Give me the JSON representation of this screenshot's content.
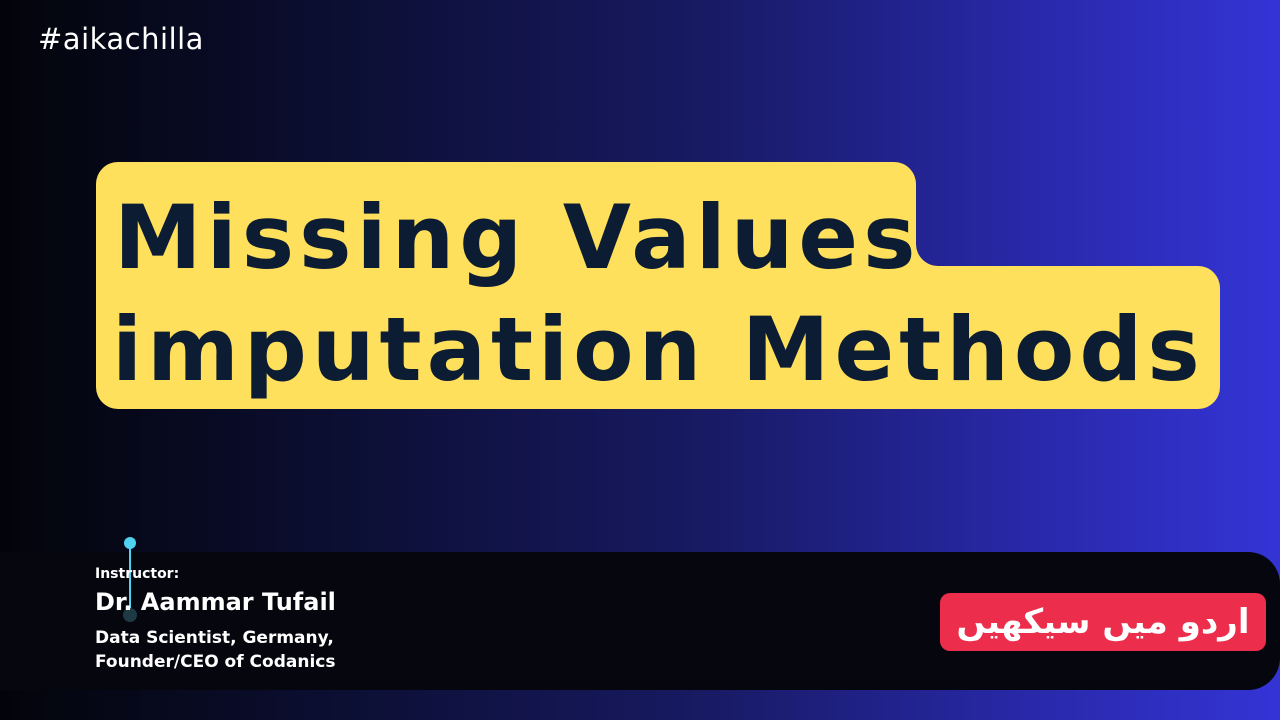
{
  "hashtag": "#aikachilla",
  "title": {
    "line1": "Missing Values",
    "line2": "imputation Methods"
  },
  "instructor": {
    "label": "Instructor:",
    "name": "Dr. Aammar Tufail",
    "role_line1": "Data Scientist, Germany,",
    "role_line2": "Founder/CEO of Codanics"
  },
  "badge": {
    "text": "اردو میں سیکھیں"
  },
  "colors": {
    "title_highlight": "#ffe05c",
    "title_text": "#0c1c33",
    "badge_bg": "#ec2d4b",
    "accent": "#4fd2f0",
    "background_start": "#03040a",
    "background_end": "#3434d6"
  }
}
